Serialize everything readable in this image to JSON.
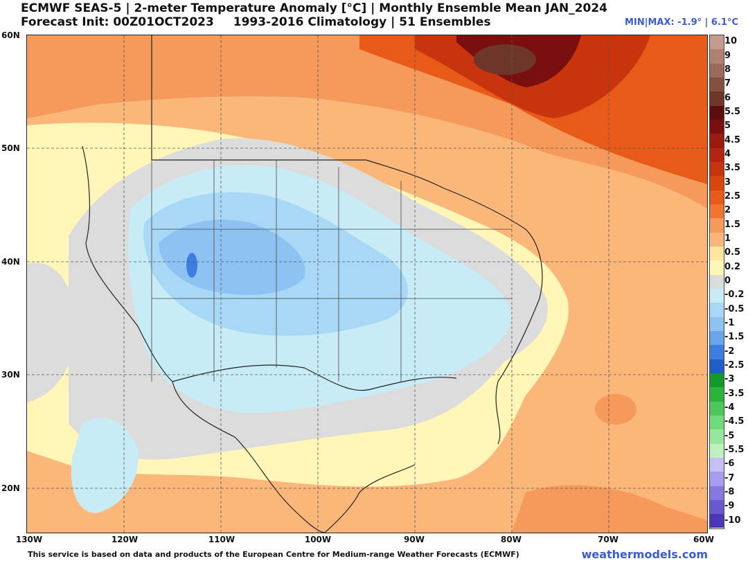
{
  "header": {
    "title_line1": "ECMWF SEAS-5 | 2-meter Temperature Anomaly [°C] | Monthly Ensemble Mean JAN_2024",
    "init": "Forecast Init: 00Z01OCT2023",
    "climatology": "1993-2016 Climatology | 51 Ensembles",
    "minmax": "MIN|MAX: -1.9° | 6.1°C"
  },
  "axes": {
    "lat_labels": [
      "60N",
      "50N",
      "40N",
      "30N",
      "20N"
    ],
    "lon_labels": [
      "130W",
      "120W",
      "110W",
      "100W",
      "90W",
      "80W",
      "70W",
      "60W"
    ]
  },
  "legend": {
    "labels": [
      "10",
      "9",
      "8",
      "7",
      "6",
      "5.5",
      "5",
      "4.5",
      "4",
      "3.5",
      "3",
      "2.5",
      "2",
      "1.5",
      "1",
      "0.5",
      "0.2",
      "0",
      "-0.2",
      "-0.5",
      "-1",
      "-1.5",
      "-2",
      "-2.5",
      "-3",
      "-3.5",
      "-4",
      "-4.5",
      "-5",
      "-5.5",
      "-6",
      "-7",
      "-8",
      "-9",
      "-10"
    ],
    "colors": [
      "#c49b8c",
      "#b08070",
      "#9a6a5a",
      "#85503f",
      "#6d3628",
      "#5c0d0d",
      "#7a0f0f",
      "#9c1a10",
      "#b32510",
      "#c8340e",
      "#d9450f",
      "#e85a18",
      "#f07530",
      "#f59a5a",
      "#fbb67a",
      "#fde6a0",
      "#fff6b8",
      "#dcdcdc",
      "#c8ecf5",
      "#a8d8f5",
      "#8ec2f2",
      "#6aa4ea",
      "#3d7fe0",
      "#1f5dc8",
      "#139a2b",
      "#2ab53a",
      "#4cc85c",
      "#6fd97b",
      "#97e69d",
      "#bff1c0",
      "#c8c0f5",
      "#a99cee",
      "#8877e0",
      "#6a58d0",
      "#4b36b8"
    ]
  },
  "footer": {
    "credit": "This service is based on data and products of the European Centre for Medium-range Weather Forecasts (ECMWF)",
    "brand": "weathermodels.com"
  }
}
